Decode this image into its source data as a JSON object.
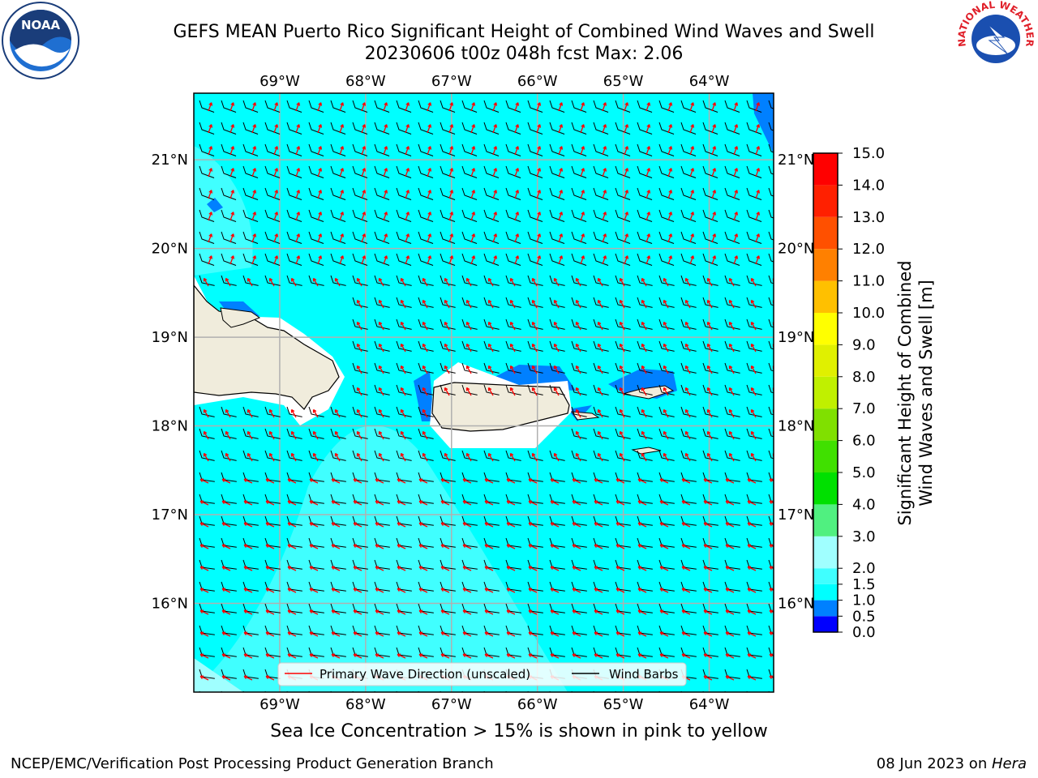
{
  "title": {
    "line1": "GEFS MEAN Puerto Rico Significant Height of Combined Wind Waves and Swell",
    "line2": "20230606 t00z 048h fcst   Max: 2.06"
  },
  "map": {
    "lon_ticks": [
      "69°W",
      "68°W",
      "67°W",
      "66°W",
      "65°W",
      "64°W"
    ],
    "lat_ticks": [
      "21°N",
      "20°N",
      "19°N",
      "18°N",
      "17°N",
      "16°N"
    ],
    "lon_range": [
      -70.0,
      -63.25
    ],
    "lat_range": [
      15.0,
      21.75
    ],
    "grid": true
  },
  "legend": {
    "wave_label": "Primary Wave Direction (unscaled)",
    "barb_label": "Wind Barbs",
    "wave_color": "#ff0000",
    "barb_color": "#000000"
  },
  "colorbar": {
    "label_line1": "Significant Height of Combined",
    "label_line2": "Wind Waves and Swell [m]",
    "levels": [
      "0.0",
      "0.5",
      "1.0",
      "1.5",
      "2.0",
      "3.0",
      "4.0",
      "5.0",
      "6.0",
      "7.0",
      "8.0",
      "9.0",
      "10.0",
      "11.0",
      "12.0",
      "13.0",
      "14.0",
      "15.0"
    ],
    "colors": [
      "#0000ff",
      "#0080ff",
      "#00ffff",
      "#40ffff",
      "#a0ffff",
      "#50f080",
      "#00e000",
      "#40e000",
      "#80e000",
      "#c0f000",
      "#e0f000",
      "#ffff00",
      "#ffc000",
      "#ff8000",
      "#ff5000",
      "#ff2000",
      "#ff0000"
    ]
  },
  "colors": {
    "ocean_main": "#00ffff",
    "ocean_light": "#40ffff",
    "ocean_lighter": "#a0ffff",
    "ocean_dark": "#0080ff",
    "land": "#f0ecdc"
  },
  "logos": {
    "noaa_text": "NOAA",
    "nws_text": "NATIONAL WEATHER SERVICE"
  },
  "note": "Sea Ice Concentration > 15% is shown in pink to yellow",
  "footer": {
    "left": "NCEP/EMC/Verification Post Processing Product Generation Branch",
    "date": "08 Jun 2023 on ",
    "host": "Hera"
  }
}
